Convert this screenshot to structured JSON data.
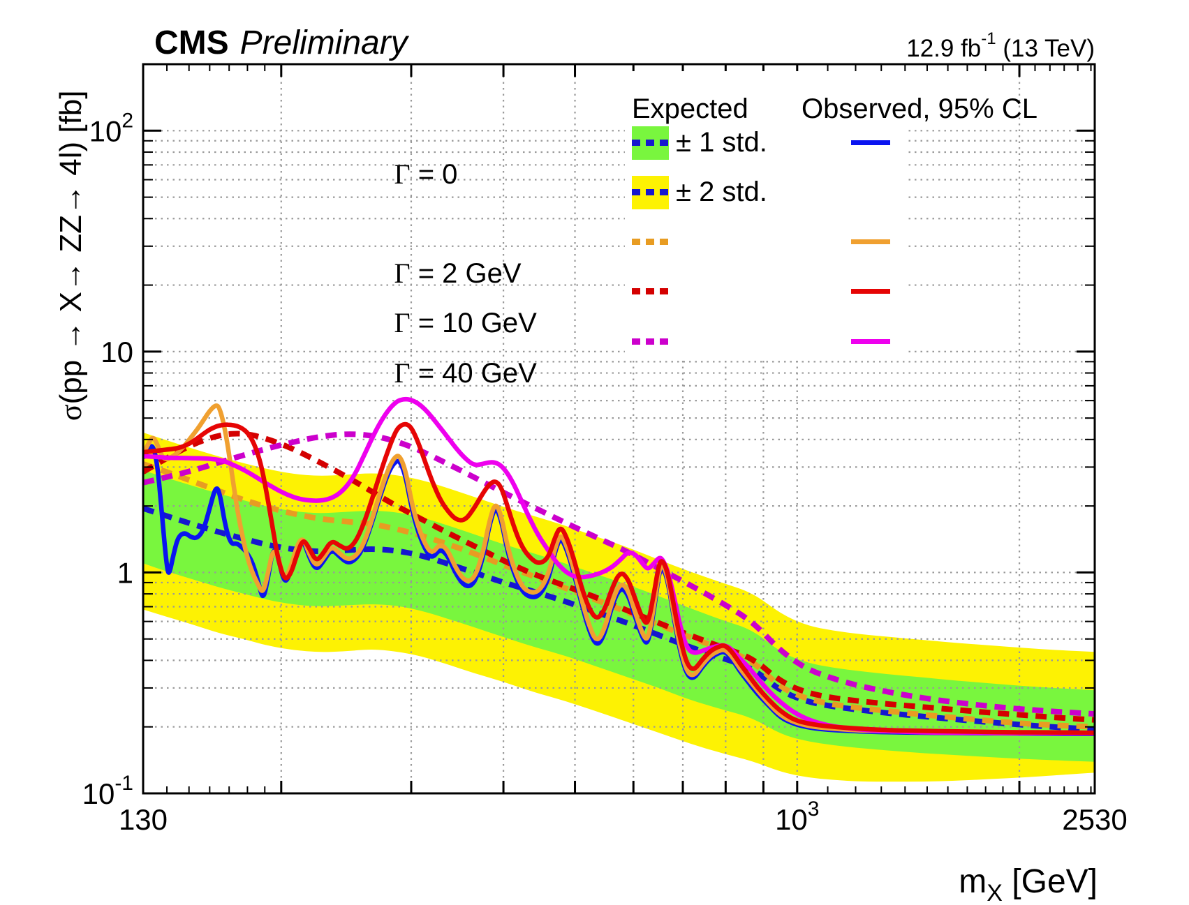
{
  "header": {
    "experiment": "CMS",
    "status": "Preliminary",
    "lumi_base": "12.9 fb",
    "lumi_exp": "-1",
    "lumi_rest": " (13 TeV)"
  },
  "legend": {
    "expected_header": "Expected",
    "observed_header": "Observed, 95% CL",
    "band_rows": [
      {
        "label": "± 1 std."
      },
      {
        "label": "± 2 std."
      }
    ],
    "gamma_rows": [
      {
        "sym": "Γ",
        "rest": " = 0"
      },
      {
        "sym": "Γ",
        "rest": " = 2 GeV"
      },
      {
        "sym": "Γ",
        "rest": " = 10 GeV"
      },
      {
        "sym": "Γ",
        "rest": " = 40 GeV"
      }
    ]
  },
  "chart_data": {
    "type": "line",
    "title": "CMS Preliminary",
    "x_axis": {
      "label_base": "m",
      "label_sub": "X",
      "label_rest": " [GeV]",
      "scale": "log",
      "min": 130,
      "max": 2530,
      "tick_labels": [
        {
          "value": 130,
          "label": "130"
        },
        {
          "value": 1000,
          "label": "10^3"
        },
        {
          "value": 2530,
          "label": "2530"
        }
      ],
      "major_ticks": [
        200,
        300,
        400,
        500,
        600,
        700,
        800,
        900,
        1000,
        2000
      ],
      "minor_ticks": [
        140,
        150,
        160,
        170,
        180,
        190,
        1100,
        1200,
        1300,
        1400,
        1500,
        1600,
        1700,
        1800,
        1900,
        2100,
        2200,
        2300,
        2400,
        2500
      ]
    },
    "y_axis": {
      "label_sigma": "σ",
      "label_rest": "(pp → X→ ZZ→ 4l) [fb]",
      "scale": "log",
      "min": 0.1,
      "max": 200,
      "tick_labels": [
        {
          "value": 0.1,
          "label": "10^-1"
        },
        {
          "value": 1,
          "label": "1"
        },
        {
          "value": 10,
          "label": "10"
        },
        {
          "value": 100,
          "label": "10^2"
        }
      ]
    },
    "grid": true,
    "legend_position": "top-right",
    "colors": {
      "band_green": "#79f63e",
      "band_yellow": "#fdf203",
      "g0_solid": "#0a14f0",
      "g0_dashed": "#1616cf",
      "g2_solid": "#f0a030",
      "g2_dashed": "#e89c22",
      "g10_solid": "#e60505",
      "g10_dashed": "#d40000",
      "g40_solid": "#ee00ee",
      "g40_dashed": "#cc00cc",
      "grid": "#999999",
      "frame": "#000000"
    },
    "masses_expected": [
      130,
      140,
      152,
      165,
      178,
      192,
      208,
      225,
      245,
      265,
      285,
      308,
      335,
      365,
      400,
      440,
      485,
      535,
      590,
      650,
      715,
      790,
      870,
      950,
      1030,
      1120,
      1220,
      1340,
      1480,
      1640,
      1820,
      2030,
      2260,
      2530
    ],
    "masses_observed": [
      130,
      132,
      134,
      136,
      138,
      140,
      141,
      143,
      145,
      148,
      151,
      154,
      157,
      160,
      163,
      165,
      168,
      171,
      174,
      177,
      180,
      183,
      186,
      189,
      192,
      195,
      198,
      202,
      206,
      210,
      214,
      218,
      223,
      228,
      234,
      240,
      246,
      252,
      258,
      265,
      272,
      280,
      286,
      290,
      295,
      300,
      306,
      313,
      320,
      328,
      336,
      345,
      355,
      365,
      375,
      383,
      390,
      397,
      405,
      414,
      424,
      435,
      447,
      460,
      470,
      478,
      487,
      498,
      510,
      522,
      535,
      548,
      562,
      576,
      590,
      604,
      618,
      628,
      640,
      650,
      657,
      668,
      682,
      696,
      710,
      725,
      742,
      762,
      780,
      797,
      815,
      835,
      858,
      885,
      915,
      950,
      990,
      1040,
      1100,
      1170,
      1250,
      1350,
      1470,
      1600,
      1760,
      1950,
      2180,
      2530
    ],
    "bands": {
      "green_hi": [
        2.9,
        2.68,
        2.46,
        2.27,
        2.12,
        1.98,
        1.89,
        1.85,
        1.88,
        1.91,
        1.88,
        1.79,
        1.64,
        1.49,
        1.34,
        1.22,
        1.1,
        0.98,
        0.88,
        0.78,
        0.69,
        0.61,
        0.55,
        0.435,
        0.39,
        0.37,
        0.357,
        0.345,
        0.335,
        0.324,
        0.315,
        0.306,
        0.299,
        0.293
      ],
      "green_lo": [
        1.1,
        1.01,
        0.93,
        0.855,
        0.8,
        0.75,
        0.715,
        0.7,
        0.71,
        0.72,
        0.71,
        0.675,
        0.62,
        0.565,
        0.51,
        0.46,
        0.42,
        0.375,
        0.335,
        0.3,
        0.265,
        0.24,
        0.22,
        0.185,
        0.172,
        0.165,
        0.16,
        0.156,
        0.152,
        0.149,
        0.146,
        0.143,
        0.141,
        0.139
      ],
      "yellow_hi": [
        4.3,
        3.96,
        3.63,
        3.34,
        3.12,
        2.93,
        2.79,
        2.73,
        2.77,
        2.82,
        2.77,
        2.64,
        2.42,
        2.2,
        1.98,
        1.8,
        1.63,
        1.45,
        1.3,
        1.14,
        1.01,
        0.9,
        0.81,
        0.65,
        0.575,
        0.545,
        0.525,
        0.51,
        0.495,
        0.48,
        0.468,
        0.455,
        0.445,
        0.437
      ],
      "yellow_lo": [
        0.68,
        0.63,
        0.58,
        0.53,
        0.5,
        0.465,
        0.445,
        0.435,
        0.44,
        0.45,
        0.44,
        0.42,
        0.385,
        0.35,
        0.32,
        0.287,
        0.262,
        0.235,
        0.21,
        0.188,
        0.168,
        0.152,
        0.14,
        0.125,
        0.118,
        0.115,
        0.113,
        0.113,
        0.113,
        0.114,
        0.116,
        0.118,
        0.121,
        0.124
      ]
    },
    "series": [
      {
        "name": "expected_g0",
        "label": "Expected Γ = 0",
        "style": "dashed",
        "color": "g0_dashed",
        "x_ref": "masses_expected",
        "y": [
          1.95,
          1.8,
          1.65,
          1.52,
          1.42,
          1.33,
          1.27,
          1.24,
          1.26,
          1.28,
          1.26,
          1.2,
          1.1,
          1.0,
          0.9,
          0.82,
          0.74,
          0.66,
          0.59,
          0.52,
          0.46,
          0.41,
          0.37,
          0.29,
          0.26,
          0.247,
          0.238,
          0.23,
          0.223,
          0.216,
          0.21,
          0.204,
          0.199,
          0.195
        ]
      },
      {
        "name": "expected_g2",
        "label": "Expected Γ = 2 GeV",
        "style": "dashed",
        "color": "g2_dashed",
        "x_ref": "masses_expected",
        "y": [
          3.1,
          2.85,
          2.58,
          2.33,
          2.13,
          1.97,
          1.84,
          1.75,
          1.7,
          1.66,
          1.58,
          1.48,
          1.35,
          1.22,
          1.08,
          0.96,
          0.85,
          0.75,
          0.66,
          0.58,
          0.51,
          0.45,
          0.4,
          0.3,
          0.268,
          0.252,
          0.243,
          0.235,
          0.227,
          0.22,
          0.213,
          0.207,
          0.203,
          0.2
        ]
      },
      {
        "name": "expected_g10",
        "label": "Expected Γ = 10 GeV",
        "style": "dashed",
        "color": "g10_dashed",
        "x_ref": "masses_expected",
        "y": [
          2.85,
          3.3,
          3.82,
          4.2,
          4.28,
          4.02,
          3.62,
          3.17,
          2.72,
          2.33,
          2.02,
          1.76,
          1.52,
          1.32,
          1.13,
          0.98,
          0.87,
          0.77,
          0.67,
          0.59,
          0.52,
          0.46,
          0.41,
          0.32,
          0.285,
          0.27,
          0.261,
          0.253,
          0.246,
          0.239,
          0.232,
          0.226,
          0.22,
          0.215
        ]
      },
      {
        "name": "expected_g40",
        "label": "Expected Γ = 40 GeV",
        "style": "dashed",
        "color": "g40_dashed",
        "x_ref": "masses_expected",
        "y": [
          2.55,
          2.7,
          2.9,
          3.15,
          3.4,
          3.65,
          3.9,
          4.12,
          4.25,
          4.18,
          3.95,
          3.58,
          3.12,
          2.7,
          2.3,
          1.97,
          1.68,
          1.44,
          1.24,
          1.04,
          0.88,
          0.73,
          0.6,
          0.44,
          0.365,
          0.33,
          0.305,
          0.286,
          0.27,
          0.258,
          0.248,
          0.24,
          0.234,
          0.229
        ]
      },
      {
        "name": "observed_g0",
        "label": "Observed Γ = 0",
        "style": "solid",
        "color": "g0_solid",
        "x_ref": "masses_observed",
        "y": [
          3.3,
          3.58,
          3.82,
          3.05,
          1.75,
          1.05,
          0.97,
          1.22,
          1.45,
          1.52,
          1.44,
          1.43,
          1.56,
          1.95,
          2.45,
          2.32,
          1.62,
          1.34,
          1.36,
          1.3,
          1.22,
          1.1,
          0.92,
          0.74,
          0.95,
          1.3,
          1.18,
          0.88,
          1.0,
          1.3,
          1.42,
          1.18,
          1.02,
          1.12,
          1.28,
          1.18,
          1.1,
          1.14,
          1.28,
          1.65,
          2.2,
          2.9,
          3.2,
          3.18,
          2.7,
          2.0,
          1.55,
          1.28,
          1.15,
          1.28,
          1.2,
          0.98,
          0.86,
          0.88,
          1.15,
          1.65,
          2.0,
          1.75,
          1.25,
          0.98,
          0.82,
          0.77,
          0.78,
          0.92,
          1.25,
          1.45,
          1.28,
          1.0,
          0.73,
          0.55,
          0.46,
          0.52,
          0.72,
          0.86,
          0.8,
          0.62,
          0.5,
          0.47,
          0.68,
          1.0,
          1.07,
          0.92,
          0.6,
          0.42,
          0.34,
          0.33,
          0.37,
          0.41,
          0.43,
          0.44,
          0.41,
          0.36,
          0.32,
          0.28,
          0.25,
          0.22,
          0.206,
          0.198,
          0.194,
          0.192,
          0.19,
          0.189,
          0.188,
          0.188,
          0.187,
          0.187,
          0.186,
          0.186
        ]
      },
      {
        "name": "observed_g2",
        "label": "Observed Γ = 2 GeV",
        "style": "solid",
        "color": "g2_solid",
        "x_ref": "masses_observed",
        "y": [
          3.45,
          3.8,
          4.15,
          3.78,
          3.32,
          3.25,
          3.28,
          3.38,
          3.5,
          3.75,
          4.1,
          4.45,
          4.9,
          5.4,
          5.74,
          5.6,
          4.4,
          3.0,
          2.0,
          1.48,
          1.16,
          0.99,
          0.88,
          0.8,
          1.0,
          1.28,
          1.18,
          0.92,
          1.05,
          1.32,
          1.45,
          1.22,
          1.06,
          1.16,
          1.32,
          1.22,
          1.14,
          1.18,
          1.32,
          1.7,
          2.28,
          3.02,
          3.38,
          3.35,
          2.86,
          2.12,
          1.64,
          1.35,
          1.21,
          1.35,
          1.27,
          1.04,
          0.91,
          0.93,
          1.21,
          1.72,
          2.08,
          1.83,
          1.31,
          1.03,
          0.86,
          0.81,
          0.82,
          0.97,
          1.3,
          1.5,
          1.33,
          1.04,
          0.76,
          0.58,
          0.48,
          0.55,
          0.75,
          0.9,
          0.84,
          0.65,
          0.52,
          0.49,
          0.71,
          1.03,
          1.1,
          0.95,
          0.62,
          0.44,
          0.35,
          0.34,
          0.38,
          0.42,
          0.44,
          0.45,
          0.42,
          0.37,
          0.33,
          0.29,
          0.255,
          0.225,
          0.21,
          0.201,
          0.197,
          0.194,
          0.192,
          0.191,
          0.19,
          0.189,
          0.188,
          0.188,
          0.187,
          0.187
        ]
      },
      {
        "name": "observed_g40",
        "label": "Observed Γ = 40 GeV",
        "style": "solid",
        "color": "g40_solid",
        "x_ref": "masses_observed",
        "y": [
          3.36,
          3.35,
          3.34,
          3.33,
          3.32,
          3.31,
          3.31,
          3.3,
          3.3,
          3.3,
          3.29,
          3.29,
          3.28,
          3.27,
          3.25,
          3.23,
          3.18,
          3.1,
          3.02,
          2.94,
          2.85,
          2.76,
          2.67,
          2.58,
          2.5,
          2.43,
          2.36,
          2.28,
          2.22,
          2.17,
          2.14,
          2.12,
          2.11,
          2.12,
          2.17,
          2.28,
          2.48,
          2.8,
          3.3,
          4.0,
          4.75,
          5.5,
          5.9,
          6.05,
          6.1,
          6.05,
          5.85,
          5.5,
          5.05,
          4.55,
          4.1,
          3.65,
          3.28,
          3.05,
          3.1,
          3.16,
          3.15,
          3.05,
          2.82,
          2.48,
          2.08,
          1.73,
          1.45,
          1.26,
          1.13,
          1.06,
          1.0,
          0.96,
          0.95,
          0.96,
          0.98,
          1.01,
          1.06,
          1.14,
          1.24,
          1.21,
          1.09,
          1.03,
          1.1,
          1.17,
          1.15,
          1.02,
          0.76,
          0.55,
          0.45,
          0.43,
          0.44,
          0.455,
          0.465,
          0.47,
          0.45,
          0.41,
          0.375,
          0.33,
          0.29,
          0.258,
          0.232,
          0.214,
          0.203,
          0.197,
          0.193,
          0.191,
          0.189,
          0.188,
          0.188,
          0.187,
          0.187,
          0.187
        ]
      },
      {
        "name": "observed_g10",
        "label": "Observed Γ = 10 GeV",
        "style": "solid",
        "color": "g10_solid",
        "x_ref": "masses_observed",
        "y": [
          3.5,
          3.52,
          3.54,
          3.56,
          3.58,
          3.6,
          3.61,
          3.63,
          3.66,
          3.74,
          3.87,
          4.05,
          4.25,
          4.44,
          4.57,
          4.63,
          4.67,
          4.66,
          4.61,
          4.5,
          4.3,
          3.95,
          3.45,
          2.8,
          2.1,
          1.55,
          1.15,
          0.92,
          0.98,
          1.2,
          1.42,
          1.3,
          1.12,
          1.22,
          1.4,
          1.32,
          1.27,
          1.37,
          1.62,
          2.1,
          2.78,
          3.68,
          4.38,
          4.62,
          4.72,
          4.55,
          3.95,
          3.2,
          2.6,
          2.15,
          1.9,
          1.73,
          1.72,
          1.95,
          2.28,
          2.52,
          2.6,
          2.45,
          2.0,
          1.58,
          1.3,
          1.16,
          1.09,
          1.16,
          1.45,
          1.62,
          1.45,
          1.16,
          0.86,
          0.69,
          0.61,
          0.67,
          0.86,
          1.01,
          0.94,
          0.75,
          0.61,
          0.58,
          0.81,
          1.1,
          1.14,
          1.0,
          0.68,
          0.48,
          0.38,
          0.36,
          0.4,
          0.44,
          0.46,
          0.47,
          0.44,
          0.39,
          0.345,
          0.3,
          0.265,
          0.235,
          0.215,
          0.206,
          0.201,
          0.198,
          0.195,
          0.193,
          0.192,
          0.191,
          0.19,
          0.189,
          0.189,
          0.188
        ]
      }
    ]
  }
}
